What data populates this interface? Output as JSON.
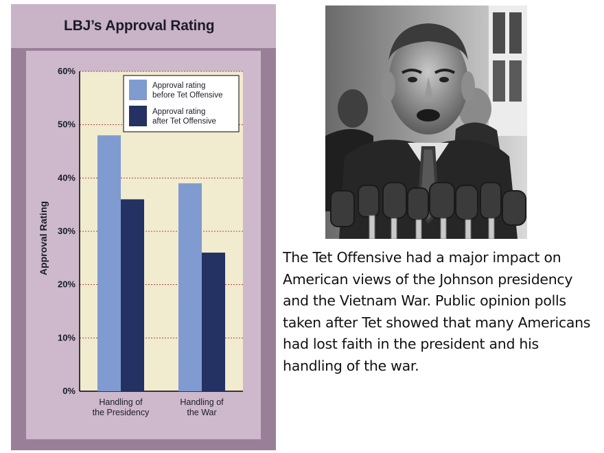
{
  "chart_data": {
    "type": "bar",
    "title": "LBJ’s Approval Rating",
    "ylabel": "Approval Rating",
    "xlabel": "",
    "ylim": [
      0,
      60
    ],
    "yticks": [
      "0%",
      "10%",
      "20%",
      "30%",
      "40%",
      "50%",
      "60%"
    ],
    "categories": [
      [
        "Handling of",
        "the Presidency"
      ],
      [
        "Handling of",
        "the War"
      ]
    ],
    "series": [
      {
        "name_lines": [
          "Approval rating",
          "before Tet Offensive"
        ],
        "values": [
          48,
          39
        ],
        "color": "#7f9bd0"
      },
      {
        "name_lines": [
          "Approval rating",
          "after Tet Offensive"
        ],
        "values": [
          36,
          26
        ],
        "color": "#233163"
      }
    ],
    "grid": true,
    "legend": "top-right",
    "plot_bg": "#f1ebcf",
    "grid_color": "#a8433d"
  },
  "paragraph": "The Tet Offensive had a major impact on American views of the Johnson presidency and the Vietnam War. Public opinion polls taken after Tet showed that many Americans had lost faith in the president and his handling of the war.",
  "photo": {
    "description_icon": "speaker-at-microphones-photo"
  }
}
